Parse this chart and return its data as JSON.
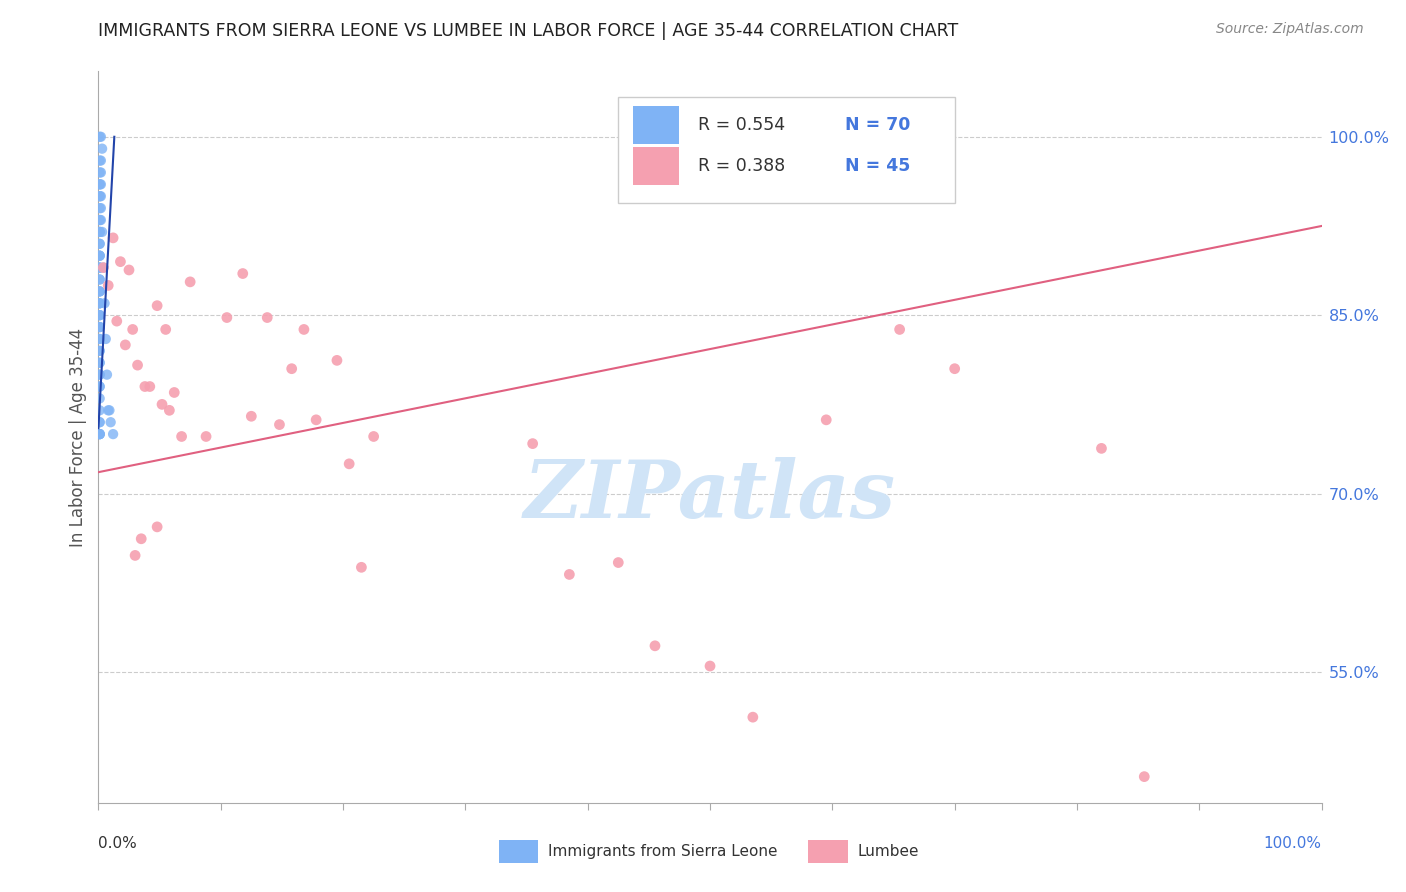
{
  "title": "IMMIGRANTS FROM SIERRA LEONE VS LUMBEE IN LABOR FORCE | AGE 35-44 CORRELATION CHART",
  "source": "Source: ZipAtlas.com",
  "ylabel": "In Labor Force | Age 35-44",
  "yticks": [
    0.55,
    0.7,
    0.85,
    1.0
  ],
  "ytick_labels": [
    "55.0%",
    "70.0%",
    "85.0%",
    "100.0%"
  ],
  "xtick_labels": [
    "0.0%",
    "100.0%"
  ],
  "xlim": [
    0.0,
    1.0
  ],
  "ylim": [
    0.44,
    1.055
  ],
  "legend_r_blue": "R = 0.554",
  "legend_n_blue": "N = 70",
  "legend_r_pink": "R = 0.388",
  "legend_n_pink": "N = 45",
  "color_blue": "#7fb3f5",
  "color_blue_edge": "#5588dd",
  "color_pink": "#f5a0b0",
  "color_pink_edge": "#e06080",
  "color_line_blue": "#2244aa",
  "color_line_pink": "#e06080",
  "color_grid": "#cccccc",
  "color_title": "#222222",
  "color_ylabel": "#555555",
  "color_source": "#888888",
  "color_watermark": "#d0e4f7",
  "color_tick_labels": "#4477dd",
  "sierra_leone_x": [
    0.001,
    0.002,
    0.003,
    0.001,
    0.002,
    0.002,
    0.001,
    0.002,
    0.001,
    0.001,
    0.002,
    0.001,
    0.001,
    0.002,
    0.001,
    0.001,
    0.002,
    0.001,
    0.001,
    0.001,
    0.001,
    0.001,
    0.001,
    0.001,
    0.001,
    0.001,
    0.001,
    0.001,
    0.001,
    0.001,
    0.001,
    0.001,
    0.001,
    0.001,
    0.001,
    0.001,
    0.001,
    0.001,
    0.001,
    0.001,
    0.001,
    0.001,
    0.001,
    0.001,
    0.001,
    0.001,
    0.001,
    0.001,
    0.001,
    0.001,
    0.001,
    0.001,
    0.001,
    0.001,
    0.003,
    0.004,
    0.005,
    0.006,
    0.007,
    0.008,
    0.009,
    0.01,
    0.012,
    0.001,
    0.001,
    0.001,
    0.001,
    0.001,
    0.001,
    0.001
  ],
  "sierra_leone_y": [
    1.0,
    1.0,
    0.99,
    0.98,
    0.98,
    0.97,
    0.97,
    0.96,
    0.96,
    0.96,
    0.95,
    0.95,
    0.95,
    0.94,
    0.94,
    0.93,
    0.93,
    0.93,
    0.92,
    0.92,
    0.92,
    0.91,
    0.91,
    0.9,
    0.9,
    0.9,
    0.89,
    0.89,
    0.89,
    0.88,
    0.88,
    0.87,
    0.87,
    0.87,
    0.86,
    0.86,
    0.86,
    0.85,
    0.85,
    0.85,
    0.84,
    0.84,
    0.84,
    0.83,
    0.83,
    0.82,
    0.82,
    0.81,
    0.81,
    0.8,
    0.8,
    0.79,
    0.79,
    0.78,
    0.92,
    0.89,
    0.86,
    0.83,
    0.8,
    0.77,
    0.77,
    0.76,
    0.75,
    0.77,
    0.76,
    0.76,
    0.75,
    0.75,
    0.75,
    0.75
  ],
  "lumbee_x": [
    0.004,
    0.008,
    0.012,
    0.015,
    0.018,
    0.022,
    0.025,
    0.028,
    0.032,
    0.038,
    0.042,
    0.048,
    0.052,
    0.058,
    0.062,
    0.068,
    0.055,
    0.035,
    0.03,
    0.048,
    0.075,
    0.088,
    0.105,
    0.118,
    0.125,
    0.138,
    0.148,
    0.158,
    0.168,
    0.178,
    0.195,
    0.205,
    0.215,
    0.225,
    0.355,
    0.385,
    0.425,
    0.455,
    0.5,
    0.535,
    0.595,
    0.655,
    0.7,
    0.82,
    0.855
  ],
  "lumbee_y": [
    0.89,
    0.875,
    0.915,
    0.845,
    0.895,
    0.825,
    0.888,
    0.838,
    0.808,
    0.79,
    0.79,
    0.858,
    0.775,
    0.77,
    0.785,
    0.748,
    0.838,
    0.662,
    0.648,
    0.672,
    0.878,
    0.748,
    0.848,
    0.885,
    0.765,
    0.848,
    0.758,
    0.805,
    0.838,
    0.762,
    0.812,
    0.725,
    0.638,
    0.748,
    0.742,
    0.632,
    0.642,
    0.572,
    0.555,
    0.512,
    0.762,
    0.838,
    0.805,
    0.738,
    0.462
  ],
  "blue_trendline_x": [
    0.0,
    0.013
  ],
  "blue_trendline_y": [
    0.755,
    1.0
  ],
  "pink_trendline_x": [
    0.0,
    1.0
  ],
  "pink_trendline_y": [
    0.718,
    0.925
  ]
}
